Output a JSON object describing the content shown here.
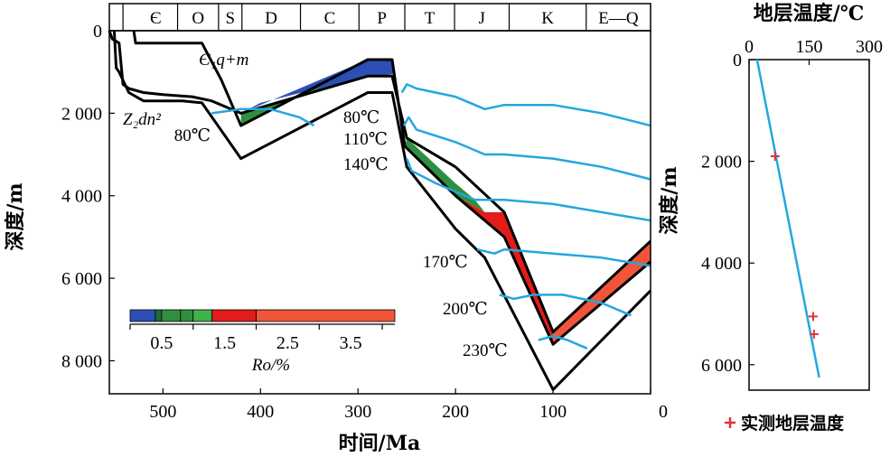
{
  "chart_data": [
    {
      "type": "line",
      "xlabel": "时间/Ma",
      "ylabel": "深度/m",
      "xlim": [
        555,
        0
      ],
      "ylim": [
        0,
        8800
      ],
      "x_ticks": [
        500,
        400,
        300,
        200,
        100,
        0
      ],
      "x_tick_labels": [
        "500",
        "400",
        "300",
        "200",
        "100",
        "0"
      ],
      "y_ticks": [
        0,
        2000,
        4000,
        6000,
        8000
      ],
      "y_tick_labels": [
        "0",
        "2 000",
        "4 000",
        "6 000",
        "8 000"
      ],
      "periods": [
        {
          "label": "Є",
          "start": 541,
          "end": 485
        },
        {
          "label": "O",
          "start": 485,
          "end": 443
        },
        {
          "label": "S",
          "start": 443,
          "end": 419
        },
        {
          "label": "D",
          "start": 419,
          "end": 359
        },
        {
          "label": "C",
          "start": 359,
          "end": 299
        },
        {
          "label": "P",
          "start": 299,
          "end": 252
        },
        {
          "label": "T",
          "start": 252,
          "end": 201
        },
        {
          "label": "J",
          "start": 201,
          "end": 145
        },
        {
          "label": "K",
          "start": 145,
          "end": 66
        },
        {
          "label": "E—Q",
          "start": 66,
          "end": 0
        }
      ],
      "burial_curves": [
        {
          "name": "top",
          "points": [
            [
              555,
              0
            ],
            [
              552,
              200
            ],
            [
              545,
              300
            ],
            [
              541,
              1300
            ],
            [
              535,
              1400
            ],
            [
              520,
              1500
            ],
            [
              500,
              1550
            ],
            [
              470,
              1600
            ],
            [
              450,
              1700
            ],
            [
              420,
              2000
            ],
            [
              290,
              1100
            ],
            [
              265,
              1100
            ],
            [
              250,
              2600
            ],
            [
              200,
              3300
            ],
            [
              150,
              4400
            ],
            [
              100,
              7300
            ],
            [
              0,
              5100
            ]
          ]
        },
        {
          "name": "Є1q+m",
          "points": [
            [
              530,
              0
            ],
            [
              528,
              300
            ],
            [
              520,
              300
            ],
            [
              480,
              300
            ],
            [
              460,
              300
            ],
            [
              440,
              1200
            ],
            [
              420,
              2300
            ],
            [
              290,
              700
            ],
            [
              265,
              700
            ],
            [
              252,
              2800
            ],
            [
              200,
              4000
            ],
            [
              150,
              5000
            ],
            [
              100,
              7600
            ],
            [
              0,
              5600
            ]
          ]
        },
        {
          "name": "Z2dn2",
          "points": [
            [
              550,
              0
            ],
            [
              548,
              900
            ],
            [
              545,
              1000
            ],
            [
              535,
              1500
            ],
            [
              520,
              1700
            ],
            [
              480,
              1700
            ],
            [
              460,
              1750
            ],
            [
              420,
              3100
            ],
            [
              290,
              1500
            ],
            [
              265,
              1500
            ],
            [
              250,
              3300
            ],
            [
              200,
              4800
            ],
            [
              170,
              5500
            ],
            [
              100,
              8700
            ],
            [
              0,
              6300
            ]
          ]
        }
      ],
      "label_curve_top": "Є₁q+m",
      "label_curve_bottom": "Z₂dn²",
      "ro_legend": {
        "ticks": [
          0.5,
          1.5,
          2.5,
          3.5
        ],
        "tick_labels": [
          "0.5",
          "1.5",
          "2.5",
          "3.5"
        ],
        "label": "Ro/%",
        "segments": [
          {
            "from": 0,
            "to": 0.4,
            "color": "#2b4fb5"
          },
          {
            "from": 0.4,
            "to": 0.5,
            "color": "#1f6b3a"
          },
          {
            "from": 0.5,
            "to": 0.8,
            "color": "#2f8f3f"
          },
          {
            "from": 0.8,
            "to": 1.0,
            "color": "#2f8f3f"
          },
          {
            "from": 1.0,
            "to": 1.3,
            "color": "#3fb14a"
          },
          {
            "from": 1.3,
            "to": 2.0,
            "color": "#e21b1b"
          },
          {
            "from": 2.0,
            "to": 4.2,
            "color": "#f0553a"
          }
        ]
      },
      "isotherms": [
        {
          "label": "80℃",
          "points": [
            [
              450,
              2000
            ],
            [
              420,
              1900
            ],
            [
              390,
              1900
            ],
            [
              360,
              2100
            ],
            [
              345,
              2300
            ]
          ]
        },
        {
          "label": "80℃",
          "points": [
            [
              255,
              1500
            ],
            [
              250,
              1300
            ],
            [
              240,
              1400
            ],
            [
              200,
              1600
            ],
            [
              170,
              1900
            ],
            [
              150,
              1800
            ],
            [
              100,
              1800
            ],
            [
              50,
              2000
            ],
            [
              0,
              2300
            ]
          ]
        },
        {
          "label": "110℃",
          "points": [
            [
              253,
              2300
            ],
            [
              248,
              2100
            ],
            [
              240,
              2400
            ],
            [
              200,
              2700
            ],
            [
              170,
              3000
            ],
            [
              150,
              3000
            ],
            [
              100,
              3100
            ],
            [
              50,
              3300
            ],
            [
              0,
              3600
            ]
          ]
        },
        {
          "label": "140℃",
          "points": [
            [
              250,
              3100
            ],
            [
              245,
              3400
            ],
            [
              220,
              3700
            ],
            [
              180,
              4100
            ],
            [
              150,
              4100
            ],
            [
              100,
              4200
            ],
            [
              50,
              4400
            ],
            [
              0,
              4600
            ]
          ]
        },
        {
          "label": "170℃",
          "points": [
            [
              178,
              5300
            ],
            [
              160,
              5400
            ],
            [
              150,
              5300
            ],
            [
              100,
              5400
            ],
            [
              50,
              5500
            ],
            [
              0,
              5700
            ]
          ]
        },
        {
          "label": "200℃",
          "points": [
            [
              155,
              6400
            ],
            [
              140,
              6500
            ],
            [
              120,
              6400
            ],
            [
              90,
              6400
            ],
            [
              50,
              6600
            ],
            [
              20,
              6900
            ]
          ]
        },
        {
          "label": "230℃",
          "points": [
            [
              115,
              7500
            ],
            [
              100,
              7400
            ],
            [
              85,
              7500
            ],
            [
              65,
              7700
            ]
          ]
        }
      ],
      "colors": {
        "isotherm": "#23a7df",
        "curve": "#000000"
      }
    },
    {
      "type": "line",
      "title": "地层温度/℃",
      "ylabel": "深度/m",
      "xlim": [
        0,
        300
      ],
      "ylim": [
        0,
        6500
      ],
      "x_ticks": [
        0,
        150,
        300
      ],
      "x_tick_labels": [
        "0",
        "150",
        "300"
      ],
      "y_ticks": [
        0,
        2000,
        4000,
        6000
      ],
      "y_tick_labels": [
        "0",
        "2 000",
        "4 000",
        "6 000"
      ],
      "series": [
        {
          "x": [
            20,
            175
          ],
          "y": [
            0,
            6250
          ],
          "color": "#23a7df"
        }
      ],
      "measured": {
        "name": "实测地层温度",
        "color": "#e0343a",
        "points": [
          [
            65,
            1900
          ],
          [
            160,
            5050
          ],
          [
            162,
            5400
          ]
        ]
      }
    }
  ]
}
